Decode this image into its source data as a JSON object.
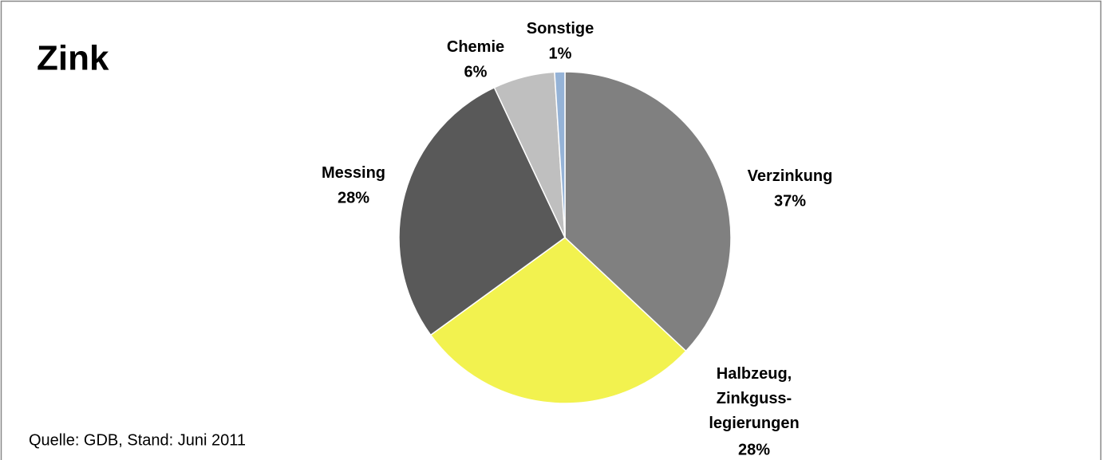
{
  "chart_data": {
    "type": "pie",
    "title": "Zink",
    "categories": [
      "Verzinkung",
      "Halbzeug,\nZinkguss-\nlegierungen",
      "Messing",
      "Chemie",
      "Sonstige"
    ],
    "values": [
      37,
      28,
      28,
      6,
      1
    ],
    "value_labels": [
      "37%",
      "28%",
      "28%",
      "6%",
      "1%"
    ],
    "colors": [
      "#808080",
      "#f2f24f",
      "#595959",
      "#bfbfbf",
      "#95b3d7"
    ],
    "source": "Quelle: GDB, Stand: Juni 2011"
  }
}
